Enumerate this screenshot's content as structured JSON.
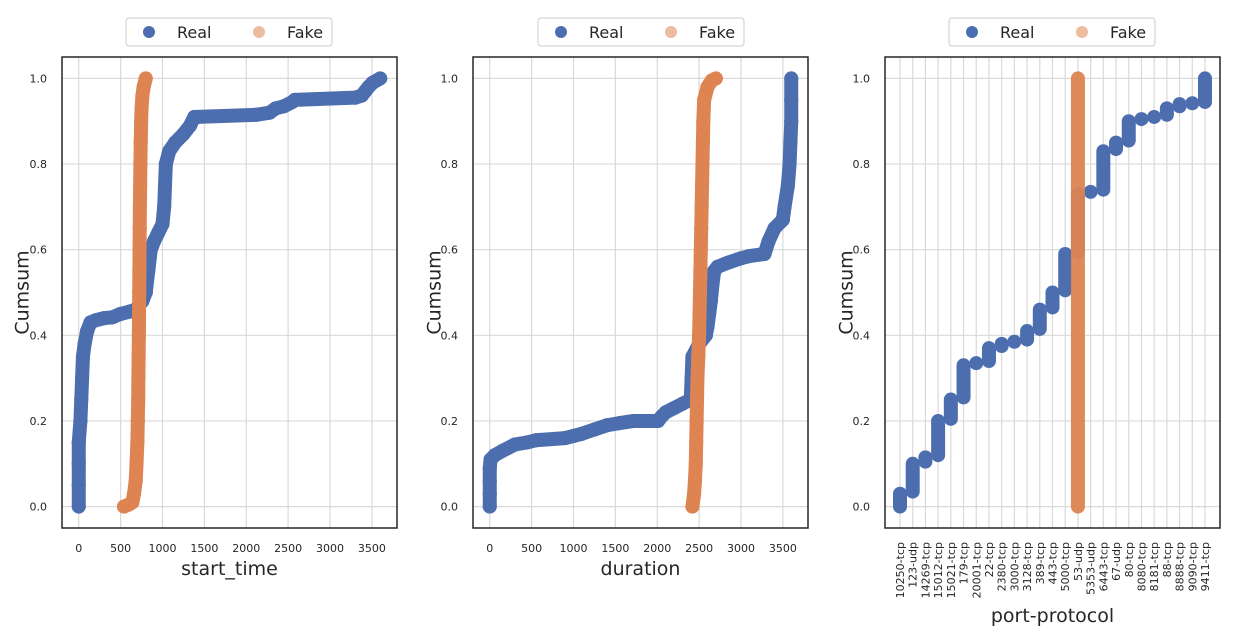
{
  "colors": {
    "real": "#4c6eaf",
    "fake": "#dd8452",
    "grid": "#d9d9d9",
    "frame": "#262626"
  },
  "chart_data": [
    {
      "type": "scatter",
      "xlabel": "start_time",
      "ylabel": "Cumsum",
      "xlim": [
        -200,
        3800
      ],
      "ylim": [
        -0.05,
        1.05
      ],
      "xticks": [
        0,
        500,
        1000,
        1500,
        2000,
        2500,
        3000,
        3500
      ],
      "xtick_labels": [
        "0",
        "500",
        "1000",
        "1500",
        "2000",
        "2500",
        "3000",
        "3500"
      ],
      "yticks": [
        0.0,
        0.2,
        0.4,
        0.6,
        0.8,
        1.0
      ],
      "ytick_labels": [
        "0.0",
        "0.2",
        "0.4",
        "0.6",
        "0.8",
        "1.0"
      ],
      "legend": {
        "position": "top-center",
        "entries": [
          "Real",
          "Fake"
        ]
      },
      "series": [
        {
          "name": "Real",
          "color": "#4c6eaf",
          "points": [
            [
              0,
              0.0
            ],
            [
              0,
              0.05
            ],
            [
              0,
              0.1
            ],
            [
              0,
              0.15
            ],
            [
              20,
              0.2
            ],
            [
              30,
              0.25
            ],
            [
              40,
              0.3
            ],
            [
              50,
              0.35
            ],
            [
              70,
              0.38
            ],
            [
              100,
              0.41
            ],
            [
              140,
              0.43
            ],
            [
              200,
              0.435
            ],
            [
              300,
              0.44
            ],
            [
              400,
              0.442
            ],
            [
              500,
              0.45
            ],
            [
              600,
              0.455
            ],
            [
              680,
              0.46
            ],
            [
              720,
              0.47
            ],
            [
              760,
              0.48
            ],
            [
              800,
              0.5
            ],
            [
              830,
              0.55
            ],
            [
              860,
              0.6
            ],
            [
              900,
              0.62
            ],
            [
              950,
              0.64
            ],
            [
              1000,
              0.66
            ],
            [
              1020,
              0.7
            ],
            [
              1030,
              0.75
            ],
            [
              1040,
              0.8
            ],
            [
              1080,
              0.83
            ],
            [
              1150,
              0.85
            ],
            [
              1250,
              0.87
            ],
            [
              1330,
              0.89
            ],
            [
              1380,
              0.91
            ],
            [
              2120,
              0.915
            ],
            [
              2280,
              0.92
            ],
            [
              2350,
              0.93
            ],
            [
              2450,
              0.935
            ],
            [
              2550,
              0.945
            ],
            [
              2580,
              0.95
            ],
            [
              3300,
              0.955
            ],
            [
              3380,
              0.96
            ],
            [
              3420,
              0.97
            ],
            [
              3460,
              0.98
            ],
            [
              3510,
              0.99
            ],
            [
              3600,
              1.0
            ]
          ]
        },
        {
          "name": "Fake",
          "color": "#dd8452",
          "points": [
            [
              540,
              0.0
            ],
            [
              600,
              0.005
            ],
            [
              640,
              0.01
            ],
            [
              660,
              0.03
            ],
            [
              680,
              0.06
            ],
            [
              690,
              0.1
            ],
            [
              700,
              0.15
            ],
            [
              705,
              0.2
            ],
            [
              710,
              0.25
            ],
            [
              712,
              0.3
            ],
            [
              715,
              0.35
            ],
            [
              718,
              0.4
            ],
            [
              720,
              0.45
            ],
            [
              722,
              0.5
            ],
            [
              724,
              0.55
            ],
            [
              726,
              0.6
            ],
            [
              728,
              0.65
            ],
            [
              730,
              0.7
            ],
            [
              733,
              0.75
            ],
            [
              736,
              0.8
            ],
            [
              740,
              0.85
            ],
            [
              745,
              0.9
            ],
            [
              750,
              0.93
            ],
            [
              760,
              0.96
            ],
            [
              775,
              0.98
            ],
            [
              800,
              1.0
            ]
          ]
        }
      ]
    },
    {
      "type": "scatter",
      "xlabel": "duration",
      "ylabel": "Cumsum",
      "xlim": [
        -200,
        3800
      ],
      "ylim": [
        -0.05,
        1.05
      ],
      "xticks": [
        0,
        500,
        1000,
        1500,
        2000,
        2500,
        3000,
        3500
      ],
      "xtick_labels": [
        "0",
        "500",
        "1000",
        "1500",
        "2000",
        "2500",
        "3000",
        "3500"
      ],
      "yticks": [
        0.0,
        0.2,
        0.4,
        0.6,
        0.8,
        1.0
      ],
      "ytick_labels": [
        "0.0",
        "0.2",
        "0.4",
        "0.6",
        "0.8",
        "1.0"
      ],
      "legend": {
        "position": "top-center",
        "entries": [
          "Real",
          "Fake"
        ]
      },
      "series": [
        {
          "name": "Real",
          "color": "#4c6eaf",
          "points": [
            [
              0,
              0.0
            ],
            [
              0,
              0.03
            ],
            [
              0,
              0.06
            ],
            [
              0,
              0.09
            ],
            [
              10,
              0.11
            ],
            [
              60,
              0.12
            ],
            [
              150,
              0.13
            ],
            [
              300,
              0.145
            ],
            [
              450,
              0.15
            ],
            [
              550,
              0.155
            ],
            [
              900,
              0.16
            ],
            [
              1000,
              0.165
            ],
            [
              1100,
              0.17
            ],
            [
              1250,
              0.18
            ],
            [
              1400,
              0.19
            ],
            [
              1550,
              0.195
            ],
            [
              1720,
              0.2
            ],
            [
              2010,
              0.2
            ],
            [
              2050,
              0.21
            ],
            [
              2100,
              0.22
            ],
            [
              2200,
              0.23
            ],
            [
              2300,
              0.24
            ],
            [
              2400,
              0.25
            ],
            [
              2410,
              0.3
            ],
            [
              2420,
              0.35
            ],
            [
              2500,
              0.38
            ],
            [
              2580,
              0.4
            ],
            [
              2600,
              0.42
            ],
            [
              2620,
              0.45
            ],
            [
              2640,
              0.48
            ],
            [
              2660,
              0.52
            ],
            [
              2680,
              0.55
            ],
            [
              2720,
              0.56
            ],
            [
              2850,
              0.57
            ],
            [
              3000,
              0.58
            ],
            [
              3100,
              0.585
            ],
            [
              3280,
              0.59
            ],
            [
              3330,
              0.62
            ],
            [
              3400,
              0.65
            ],
            [
              3500,
              0.67
            ],
            [
              3520,
              0.7
            ],
            [
              3560,
              0.75
            ],
            [
              3580,
              0.8
            ],
            [
              3590,
              0.85
            ],
            [
              3600,
              0.9
            ],
            [
              3600,
              0.95
            ],
            [
              3600,
              1.0
            ]
          ]
        },
        {
          "name": "Fake",
          "color": "#dd8452",
          "points": [
            [
              2420,
              0.0
            ],
            [
              2440,
              0.03
            ],
            [
              2450,
              0.06
            ],
            [
              2460,
              0.1
            ],
            [
              2465,
              0.15
            ],
            [
              2470,
              0.2
            ],
            [
              2475,
              0.25
            ],
            [
              2480,
              0.3
            ],
            [
              2490,
              0.35
            ],
            [
              2500,
              0.4
            ],
            [
              2505,
              0.45
            ],
            [
              2510,
              0.5
            ],
            [
              2515,
              0.55
            ],
            [
              2520,
              0.6
            ],
            [
              2525,
              0.65
            ],
            [
              2530,
              0.7
            ],
            [
              2535,
              0.75
            ],
            [
              2540,
              0.8
            ],
            [
              2545,
              0.85
            ],
            [
              2550,
              0.9
            ],
            [
              2560,
              0.95
            ],
            [
              2600,
              0.98
            ],
            [
              2650,
              0.995
            ],
            [
              2700,
              1.0
            ]
          ]
        }
      ]
    },
    {
      "type": "scatter",
      "xlabel": "port-protocol",
      "ylabel": "Cumsum",
      "categories": [
        "10250-tcp",
        "123-udp",
        "14269-tcp",
        "15012-tcp",
        "15021-tcp",
        "179-tcp",
        "20001-tcp",
        "22-tcp",
        "2380-tcp",
        "3000-tcp",
        "3128-tcp",
        "389-tcp",
        "443-tcp",
        "5000-tcp",
        "53-udp",
        "5353-udp",
        "6443-tcp",
        "67-udp",
        "80-tcp",
        "8080-tcp",
        "8181-tcp",
        "88-tcp",
        "8888-tcp",
        "9090-tcp",
        "9411-tcp"
      ],
      "ylim": [
        -0.05,
        1.05
      ],
      "yticks": [
        0.0,
        0.2,
        0.4,
        0.6,
        0.8,
        1.0
      ],
      "ytick_labels": [
        "0.0",
        "0.2",
        "0.4",
        "0.6",
        "0.8",
        "1.0"
      ],
      "legend": {
        "position": "top-center",
        "entries": [
          "Real",
          "Fake"
        ]
      },
      "series": [
        {
          "name": "Real",
          "color": "#4c6eaf",
          "ranges": [
            [
              0,
              0.03
            ],
            [
              0.035,
              0.1
            ],
            [
              0.105,
              0.115
            ],
            [
              0.12,
              0.2
            ],
            [
              0.205,
              0.25
            ],
            [
              0.255,
              0.33
            ],
            [
              0.335,
              0.335
            ],
            [
              0.34,
              0.37
            ],
            [
              0.375,
              0.38
            ],
            [
              0.385,
              0.385
            ],
            [
              0.39,
              0.41
            ],
            [
              0.415,
              0.46
            ],
            [
              0.465,
              0.5
            ],
            [
              0.505,
              0.59
            ],
            [
              0.595,
              0.73
            ],
            [
              0.735,
              0.735
            ],
            [
              0.74,
              0.83
            ],
            [
              0.835,
              0.85
            ],
            [
              0.855,
              0.9
            ],
            [
              0.905,
              0.905
            ],
            [
              0.91,
              0.91
            ],
            [
              0.915,
              0.93
            ],
            [
              0.935,
              0.94
            ],
            [
              0.942,
              0.942
            ],
            [
              0.945,
              1.0
            ]
          ]
        },
        {
          "name": "Fake",
          "color": "#dd8452",
          "ranges": [
            [
              null,
              null
            ],
            [
              null,
              null
            ],
            [
              null,
              null
            ],
            [
              null,
              null
            ],
            [
              null,
              null
            ],
            [
              null,
              null
            ],
            [
              null,
              null
            ],
            [
              null,
              null
            ],
            [
              null,
              null
            ],
            [
              null,
              null
            ],
            [
              null,
              null
            ],
            [
              null,
              null
            ],
            [
              null,
              null
            ],
            [
              null,
              null
            ],
            [
              0.0,
              1.0
            ],
            [
              null,
              null
            ],
            [
              null,
              null
            ],
            [
              null,
              null
            ],
            [
              null,
              null
            ],
            [
              null,
              null
            ],
            [
              null,
              null
            ],
            [
              null,
              null
            ],
            [
              null,
              null
            ],
            [
              null,
              null
            ],
            [
              null,
              null
            ]
          ]
        }
      ]
    }
  ]
}
